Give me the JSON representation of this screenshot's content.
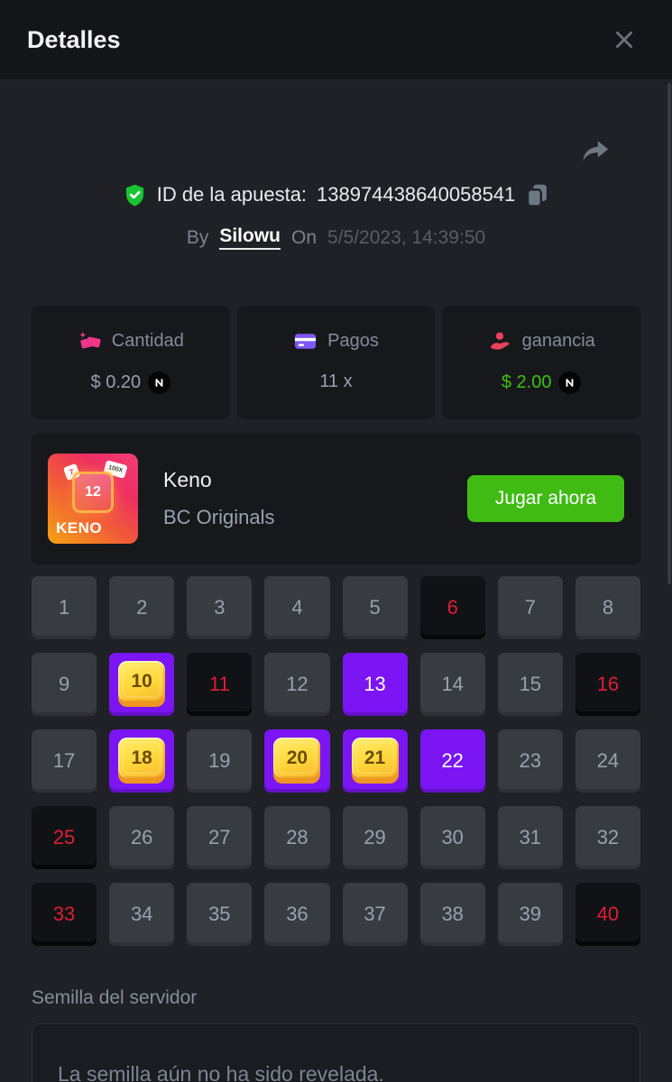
{
  "header": {
    "title": "Detalles"
  },
  "bet": {
    "id_label": "ID de la apuesta:",
    "id_value": "138974438640058541",
    "by_label": "By",
    "username": "Silowu",
    "on_label": "On",
    "datetime": "5/5/2023, 14:39:50"
  },
  "stats": {
    "amount": {
      "label": "Cantidad",
      "value": "$ 0.20"
    },
    "payout": {
      "label": "Pagos",
      "value": "11 x"
    },
    "profit": {
      "label": "ganancia",
      "value": "$ 2.00"
    }
  },
  "game": {
    "title": "Keno",
    "provider": "BC Originals",
    "play_button": "Jugar ahora",
    "thumbnail": {
      "name": "KENO",
      "gem_number": "12",
      "tag_small": "7",
      "tag_multiplier": "100X"
    }
  },
  "keno": {
    "tiles": [
      {
        "n": 1,
        "state": "normal"
      },
      {
        "n": 2,
        "state": "normal"
      },
      {
        "n": 3,
        "state": "normal"
      },
      {
        "n": 4,
        "state": "normal"
      },
      {
        "n": 5,
        "state": "normal"
      },
      {
        "n": 6,
        "state": "miss"
      },
      {
        "n": 7,
        "state": "normal"
      },
      {
        "n": 8,
        "state": "normal"
      },
      {
        "n": 9,
        "state": "normal"
      },
      {
        "n": 10,
        "state": "hit"
      },
      {
        "n": 11,
        "state": "miss"
      },
      {
        "n": 12,
        "state": "normal"
      },
      {
        "n": 13,
        "state": "selected"
      },
      {
        "n": 14,
        "state": "normal"
      },
      {
        "n": 15,
        "state": "normal"
      },
      {
        "n": 16,
        "state": "miss"
      },
      {
        "n": 17,
        "state": "normal"
      },
      {
        "n": 18,
        "state": "hit"
      },
      {
        "n": 19,
        "state": "normal"
      },
      {
        "n": 20,
        "state": "hit"
      },
      {
        "n": 21,
        "state": "hit"
      },
      {
        "n": 22,
        "state": "selected"
      },
      {
        "n": 23,
        "state": "normal"
      },
      {
        "n": 24,
        "state": "normal"
      },
      {
        "n": 25,
        "state": "miss"
      },
      {
        "n": 26,
        "state": "normal"
      },
      {
        "n": 27,
        "state": "normal"
      },
      {
        "n": 28,
        "state": "normal"
      },
      {
        "n": 29,
        "state": "normal"
      },
      {
        "n": 30,
        "state": "normal"
      },
      {
        "n": 31,
        "state": "normal"
      },
      {
        "n": 32,
        "state": "normal"
      },
      {
        "n": 33,
        "state": "miss"
      },
      {
        "n": 34,
        "state": "normal"
      },
      {
        "n": 35,
        "state": "normal"
      },
      {
        "n": 36,
        "state": "normal"
      },
      {
        "n": 37,
        "state": "normal"
      },
      {
        "n": 38,
        "state": "normal"
      },
      {
        "n": 39,
        "state": "normal"
      },
      {
        "n": 40,
        "state": "miss"
      }
    ]
  },
  "seed": {
    "label": "Semilla del servidor",
    "message": "La semilla aún no ha sido revelada."
  },
  "colors": {
    "accent_purple": "#7b15f3",
    "miss_red": "#e01e31",
    "profit_green": "#3cc10e",
    "button_green": "#3fbb13",
    "gem_gold": "#ffd83c"
  }
}
